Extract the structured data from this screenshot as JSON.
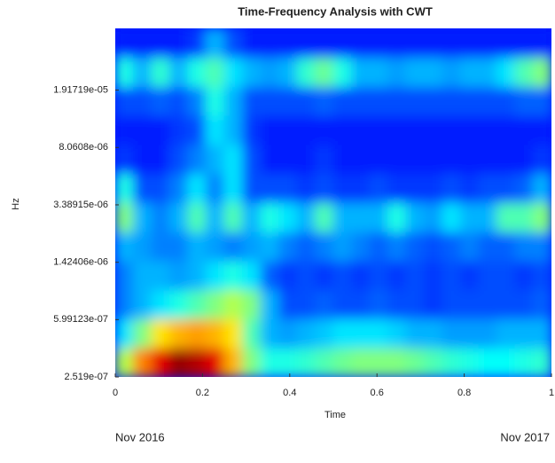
{
  "chart_data": {
    "type": "heatmap",
    "title": "Time-Frequency Analysis with CWT",
    "xlabel": "Time",
    "ylabel": "Hz",
    "annotations": [
      "Nov 2016",
      "Nov 2017"
    ],
    "xlim": [
      0,
      1
    ],
    "xticks": [
      0,
      0.2,
      0.4,
      0.6,
      0.8,
      1
    ],
    "ylim": [
      2.519e-07,
      4.87e-05
    ],
    "yscale": "log",
    "yticks": [
      {
        "value": 2.519e-07,
        "label": "2.519e-07"
      },
      {
        "value": 5.99123e-07,
        "label": "5.99123e-07"
      },
      {
        "value": 1.42406e-06,
        "label": "1.42406e-06"
      },
      {
        "value": 3.38915e-06,
        "label": "3.38915e-06"
      },
      {
        "value": 8.0608e-06,
        "label": "8.0608e-06"
      },
      {
        "value": 1.91719e-05,
        "label": "1.91719e-05"
      }
    ],
    "colormap": "jet",
    "z": [
      [
        0.55,
        0.75,
        0.9,
        0.98,
        0.95,
        0.9,
        0.7,
        0.5,
        0.4,
        0.4,
        0.42,
        0.45,
        0.48,
        0.5,
        0.5,
        0.5,
        0.48,
        0.45,
        0.42,
        0.4,
        0.38,
        0.38,
        0.4,
        0.42
      ],
      [
        0.35,
        0.5,
        0.65,
        0.7,
        0.72,
        0.7,
        0.65,
        0.45,
        0.3,
        0.28,
        0.3,
        0.32,
        0.35,
        0.35,
        0.35,
        0.33,
        0.3,
        0.3,
        0.28,
        0.28,
        0.28,
        0.3,
        0.3,
        0.3
      ],
      [
        0.25,
        0.3,
        0.35,
        0.4,
        0.45,
        0.5,
        0.55,
        0.5,
        0.3,
        0.2,
        0.2,
        0.22,
        0.2,
        0.2,
        0.22,
        0.2,
        0.2,
        0.18,
        0.2,
        0.2,
        0.2,
        0.2,
        0.2,
        0.22
      ],
      [
        0.25,
        0.3,
        0.3,
        0.28,
        0.3,
        0.35,
        0.4,
        0.35,
        0.22,
        0.18,
        0.2,
        0.18,
        0.2,
        0.18,
        0.2,
        0.18,
        0.2,
        0.18,
        0.2,
        0.18,
        0.2,
        0.2,
        0.18,
        0.2
      ],
      [
        0.3,
        0.28,
        0.25,
        0.25,
        0.3,
        0.28,
        0.25,
        0.28,
        0.3,
        0.25,
        0.22,
        0.25,
        0.28,
        0.25,
        0.22,
        0.25,
        0.22,
        0.2,
        0.22,
        0.25,
        0.22,
        0.22,
        0.25,
        0.25
      ],
      [
        0.5,
        0.3,
        0.25,
        0.3,
        0.45,
        0.3,
        0.45,
        0.3,
        0.4,
        0.35,
        0.3,
        0.45,
        0.3,
        0.3,
        0.3,
        0.4,
        0.3,
        0.28,
        0.35,
        0.3,
        0.3,
        0.45,
        0.45,
        0.5
      ],
      [
        0.4,
        0.2,
        0.2,
        0.25,
        0.35,
        0.25,
        0.35,
        0.2,
        0.2,
        0.2,
        0.18,
        0.2,
        0.18,
        0.18,
        0.2,
        0.18,
        0.18,
        0.18,
        0.2,
        0.18,
        0.2,
        0.2,
        0.22,
        0.3
      ],
      [
        0.18,
        0.15,
        0.15,
        0.2,
        0.25,
        0.3,
        0.35,
        0.2,
        0.15,
        0.15,
        0.15,
        0.18,
        0.15,
        0.15,
        0.15,
        0.15,
        0.15,
        0.15,
        0.15,
        0.15,
        0.15,
        0.15,
        0.15,
        0.18
      ],
      [
        0.15,
        0.15,
        0.15,
        0.18,
        0.2,
        0.35,
        0.3,
        0.18,
        0.15,
        0.15,
        0.15,
        0.15,
        0.15,
        0.15,
        0.15,
        0.15,
        0.15,
        0.15,
        0.15,
        0.15,
        0.15,
        0.15,
        0.15,
        0.15
      ],
      [
        0.2,
        0.2,
        0.22,
        0.2,
        0.25,
        0.4,
        0.3,
        0.2,
        0.2,
        0.2,
        0.2,
        0.22,
        0.2,
        0.2,
        0.2,
        0.2,
        0.2,
        0.2,
        0.2,
        0.2,
        0.2,
        0.2,
        0.22,
        0.22
      ],
      [
        0.4,
        0.3,
        0.42,
        0.3,
        0.4,
        0.45,
        0.35,
        0.3,
        0.28,
        0.3,
        0.42,
        0.48,
        0.4,
        0.3,
        0.3,
        0.28,
        0.3,
        0.3,
        0.28,
        0.3,
        0.3,
        0.35,
        0.45,
        0.5
      ],
      [
        0.15,
        0.15,
        0.15,
        0.15,
        0.18,
        0.3,
        0.2,
        0.15,
        0.15,
        0.15,
        0.15,
        0.15,
        0.15,
        0.15,
        0.15,
        0.15,
        0.15,
        0.15,
        0.15,
        0.15,
        0.15,
        0.15,
        0.15,
        0.15
      ]
    ]
  }
}
